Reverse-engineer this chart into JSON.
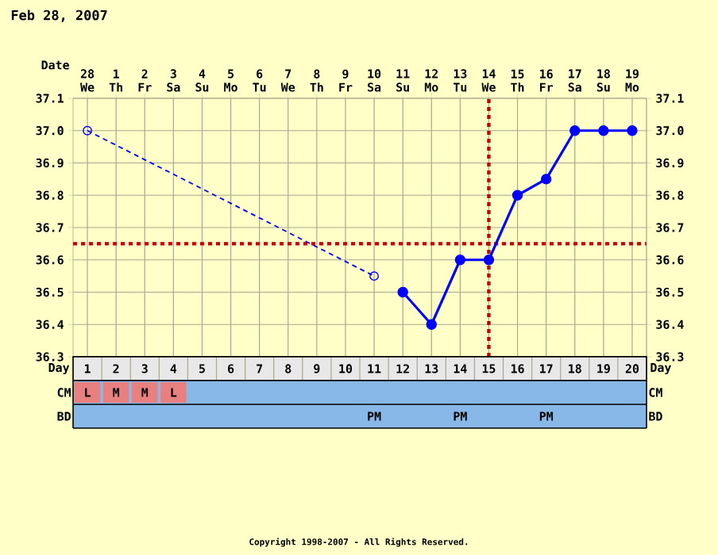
{
  "chart_data": [
    {
      "type": "line",
      "title": "Feb 28, 2007",
      "xlabel": "Date",
      "categories": [
        "28 We",
        "1 Th",
        "2 Fr",
        "3 Sa",
        "4 Su",
        "5 Mo",
        "6 Tu",
        "7 We",
        "8 Th",
        "9 Fr",
        "10 Sa",
        "11 Su",
        "12 Mo",
        "13 Tu",
        "14 We",
        "15 Th",
        "16 Fr",
        "17 Sa",
        "18 Su",
        "19 Mo"
      ],
      "series": [
        {
          "color": "#0000ff",
          "line_style": "dashed",
          "marker": "circle",
          "values": [
            37.0,
            null,
            null,
            null,
            null,
            null,
            null,
            null,
            null,
            null,
            36.55,
            null,
            null,
            null,
            null,
            null,
            null,
            null,
            null,
            null
          ]
        },
        {
          "color": "#0000ff",
          "line_style": "solid",
          "marker": "circle",
          "values": [
            null,
            null,
            null,
            null,
            null,
            null,
            null,
            null,
            null,
            null,
            null,
            36.5,
            36.4,
            36.6,
            36.6,
            36.8,
            36.85,
            37.0,
            37.0,
            37.0
          ]
        }
      ],
      "ylim": [
        36.3,
        37.1
      ],
      "yticks": [
        {
          "value": 36.3,
          "label": "36.3"
        },
        {
          "value": 36.4,
          "label": "36.4"
        },
        {
          "value": 36.5,
          "label": "36.5"
        },
        {
          "value": 36.6,
          "label": "36.6"
        },
        {
          "value": 36.7,
          "label": "36.7"
        },
        {
          "value": 36.8,
          "label": "36.8"
        },
        {
          "value": 36.9,
          "label": "36.9"
        },
        {
          "value": 37.0,
          "label": "37.0"
        },
        {
          "value": 37.1,
          "label": "37.1"
        }
      ],
      "y2lim": [
        36.3,
        37.1
      ],
      "y2ticks": [
        {
          "value": 36.3,
          "label": "36.3"
        },
        {
          "value": 36.4,
          "label": "36.4"
        },
        {
          "value": 36.5,
          "label": "36.5"
        },
        {
          "value": 36.6,
          "label": "36.6"
        },
        {
          "value": 36.7,
          "label": "36.7"
        },
        {
          "value": 36.8,
          "label": "36.8"
        },
        {
          "value": 36.9,
          "label": "36.9"
        },
        {
          "value": 37.0,
          "label": "37.0"
        },
        {
          "value": 37.1,
          "label": "37.1"
        }
      ],
      "grid": true,
      "ref_lines": [
        {
          "axis": "y",
          "value": 36.65,
          "color": "#c00000",
          "line_style": "dotted"
        },
        {
          "axis": "x",
          "value": "14 We",
          "color": "#c00000",
          "line_style": "dotted"
        }
      ],
      "annotations": [
        "Copyright 1998-2007 - All Rights Reserved."
      ]
    },
    {
      "type": "heatmap",
      "xlabel": "Day",
      "categories": [
        "1",
        "2",
        "3",
        "4",
        "5",
        "6",
        "7",
        "8",
        "9",
        "10",
        "11",
        "12",
        "13",
        "14",
        "15",
        "16",
        "17",
        "18",
        "19",
        "20"
      ],
      "y_categories": [
        "CM",
        "BD"
      ],
      "y2_categories": [
        "CM",
        "BD"
      ],
      "cells": [
        [
          null,
          null,
          null,
          null,
          null,
          null,
          null,
          null,
          null,
          null,
          null,
          null,
          null,
          null,
          null,
          null,
          null,
          null,
          null,
          null
        ],
        [
          null,
          null,
          null,
          null,
          null,
          null,
          null,
          null,
          null,
          null,
          null,
          null,
          null,
          null,
          null,
          null,
          null,
          null,
          null,
          null
        ]
      ],
      "cell_labels": [
        [
          "L",
          "M",
          "M",
          "L",
          null,
          null,
          null,
          null,
          null,
          null,
          null,
          null,
          null,
          null,
          null,
          null,
          null,
          null,
          null,
          null
        ],
        [
          null,
          null,
          null,
          null,
          null,
          null,
          null,
          null,
          null,
          null,
          "PM",
          null,
          null,
          "PM",
          null,
          null,
          "PM",
          null,
          null,
          null
        ]
      ]
    }
  ]
}
